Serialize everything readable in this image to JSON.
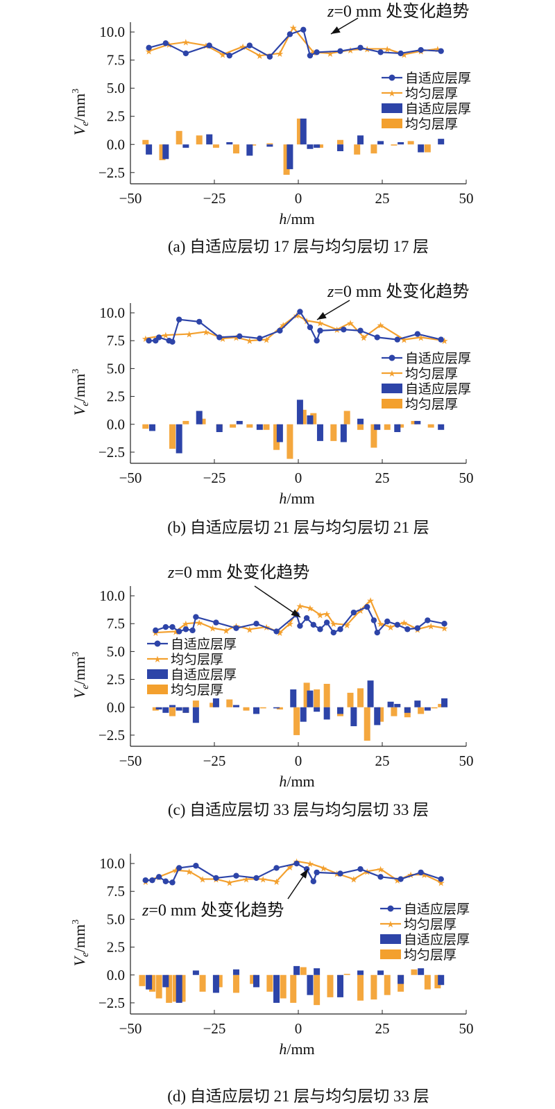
{
  "colors": {
    "adaptive": "#2d44a8",
    "uniform": "#f3a02e",
    "axis": "#222222"
  },
  "legend_labels": [
    "自适应层厚",
    "均匀层厚",
    "自适应层厚",
    "均匀层厚"
  ],
  "chart_data": [
    {
      "type": "line+bar",
      "caption": "(a) 自适应层切 17 层与均匀层切 17 层",
      "annotation": "z=0 mm 处变化趋势",
      "xlabel": "h/mm",
      "ylabel": "Ve/mm3",
      "xlim": [
        -50,
        50
      ],
      "ylim": [
        -3.5,
        10.5
      ],
      "xticks": [
        -50,
        -25,
        0,
        25,
        50
      ],
      "yticks": [
        10.0,
        7.5,
        5.0,
        2.5,
        0.0,
        -2.5
      ],
      "legend_position": "right",
      "series": [
        {
          "name": "自适应层厚",
          "kind": "line",
          "x": [
            -44.5,
            -39.5,
            -33.5,
            -26.5,
            -20.5,
            -14.5,
            -8.5,
            -2.5,
            1.5,
            3.5,
            5.5,
            12.5,
            18.5,
            24.5,
            30.5,
            36.5,
            42.5
          ],
          "y": [
            8.6,
            9.0,
            8.1,
            8.8,
            7.9,
            8.8,
            7.8,
            9.8,
            10.2,
            7.9,
            8.2,
            8.3,
            8.6,
            8.2,
            8.1,
            8.4,
            8.3
          ]
        },
        {
          "name": "均匀层厚",
          "kind": "line",
          "x": [
            -44.5,
            -38.5,
            -33.5,
            -27.5,
            -22.5,
            -16.5,
            -11.5,
            -5.5,
            -1.5,
            4.5,
            9.5,
            15.5,
            20.5,
            26.5,
            31.5,
            36.5,
            41.5
          ],
          "y": [
            8.3,
            8.9,
            9.1,
            8.8,
            8.0,
            8.7,
            7.9,
            8.1,
            10.4,
            8.2,
            8.1,
            8.4,
            8.5,
            8.5,
            8.0,
            8.3,
            8.5
          ]
        },
        {
          "name": "自适应层厚",
          "kind": "bar",
          "x": [
            -44.5,
            -39.5,
            -33.5,
            -26.5,
            -20.5,
            -14.5,
            -8.5,
            -2.5,
            1.5,
            3.5,
            5.5,
            12.5,
            18.5,
            24.5,
            30.5,
            36.5,
            42.5
          ],
          "y": [
            -0.9,
            -1.3,
            -0.3,
            0.9,
            0.2,
            -1.0,
            -0.2,
            -2.2,
            2.3,
            -0.4,
            -0.3,
            -0.6,
            0.8,
            0.3,
            0.2,
            -0.7,
            0.5
          ]
        },
        {
          "name": "均匀层厚",
          "kind": "bar",
          "x": [
            -45.5,
            -40.5,
            -35.5,
            -29.5,
            -24.5,
            -18.5,
            -13.5,
            -8.5,
            -3.5,
            0.5,
            6.5,
            12.5,
            17.5,
            22.5,
            28.5,
            33.5,
            38.5
          ],
          "y": [
            0.4,
            -1.4,
            1.2,
            0.8,
            -0.3,
            -0.8,
            -0.1,
            0.1,
            -2.7,
            2.3,
            -0.3,
            0.4,
            -0.9,
            -0.8,
            -0.1,
            0.3,
            -0.7
          ]
        }
      ]
    },
    {
      "type": "line+bar",
      "caption": "(b) 自适应层切 21 层与均匀层切 21 层",
      "annotation": "z=0 mm 处变化趋势",
      "xlabel": "h/mm",
      "ylabel": "Ve/mm3",
      "xlim": [
        -50,
        50
      ],
      "ylim": [
        -3.5,
        10.5
      ],
      "xticks": [
        -50,
        -25,
        0,
        25,
        50
      ],
      "yticks": [
        10.0,
        7.5,
        5.0,
        2.5,
        0.0,
        -2.5
      ],
      "legend_position": "right",
      "series": [
        {
          "name": "自适应层厚",
          "kind": "line",
          "x": [
            -44.5,
            -42.5,
            -41.5,
            -38.5,
            -37.5,
            -35.5,
            -29.5,
            -23.5,
            -17.5,
            -11.5,
            -5.5,
            0.5,
            3.5,
            5.5,
            6.5,
            13.5,
            18.5,
            23.5,
            29.5,
            35.5,
            42.5
          ],
          "y": [
            7.5,
            7.5,
            7.8,
            7.5,
            7.4,
            9.4,
            9.2,
            7.8,
            7.9,
            7.7,
            8.4,
            10.1,
            8.7,
            7.5,
            8.4,
            8.5,
            8.4,
            7.8,
            7.6,
            8.1,
            7.6
          ]
        },
        {
          "name": "均匀层厚",
          "kind": "line",
          "x": [
            -45.5,
            -39.5,
            -32.5,
            -27.5,
            -22.5,
            -18.5,
            -14.5,
            -9.5,
            -4.5,
            -0.5,
            2.5,
            6.5,
            11.5,
            15.5,
            19.5,
            24.5,
            31.5,
            36.5,
            43.5
          ],
          "y": [
            7.7,
            8.0,
            8.1,
            8.3,
            7.7,
            7.8,
            7.5,
            7.6,
            8.9,
            9.8,
            9.3,
            9.1,
            8.5,
            9.1,
            7.8,
            8.9,
            7.6,
            7.8,
            7.5
          ]
        },
        {
          "name": "自适应层厚",
          "kind": "bar",
          "x": [
            -43.5,
            -35.5,
            -29.5,
            -23.5,
            -17.5,
            -11.5,
            -5.5,
            0.5,
            3.5,
            6.5,
            13.5,
            18.5,
            23.5,
            29.5,
            35.5,
            42.5
          ],
          "y": [
            -0.6,
            -2.6,
            1.2,
            -0.7,
            0.3,
            -0.5,
            -1.6,
            2.2,
            0.8,
            -1.5,
            -1.6,
            0.5,
            -0.5,
            -0.7,
            0.3,
            -0.5
          ]
        },
        {
          "name": "均匀层厚",
          "kind": "bar",
          "x": [
            -45.5,
            -37.5,
            -33.5,
            -28.5,
            -23.5,
            -19.5,
            -14.5,
            -9.5,
            -6.5,
            -2.5,
            1.5,
            4.5,
            10.5,
            14.5,
            18.5,
            22.5,
            26.5,
            30.5,
            34.5,
            39.5
          ],
          "y": [
            -0.4,
            -2.2,
            0.3,
            0.5,
            -0.5,
            -0.3,
            -0.3,
            -0.5,
            -2.3,
            -3.1,
            1.3,
            1.0,
            -1.5,
            1.2,
            -0.5,
            -2.1,
            -0.5,
            -0.3,
            0.3,
            -0.3
          ]
        }
      ]
    },
    {
      "type": "line+bar",
      "caption": "(c) 自适应层切 33 层与均匀层切 33 层",
      "annotation": "z=0 mm 处变化趋势",
      "xlabel": "h/mm",
      "ylabel": "Ve/mm3",
      "xlim": [
        -50,
        50
      ],
      "ylim": [
        -3.5,
        10.5
      ],
      "xticks": [
        -50,
        -25,
        0,
        25,
        50
      ],
      "yticks": [
        10.0,
        7.5,
        5.0,
        2.5,
        0.0,
        -2.5
      ],
      "legend_position": "left",
      "series": [
        {
          "name": "自适应层厚",
          "kind": "line",
          "x": [
            -42.5,
            -39.5,
            -37.5,
            -35.5,
            -33.5,
            -31.5,
            -30.5,
            -24.5,
            -18.5,
            -12.5,
            -6.5,
            -0.5,
            0.5,
            2.5,
            4.5,
            6.5,
            8.5,
            10.5,
            12.5,
            16.5,
            20.5,
            22.5,
            23.5,
            26.5,
            29.5,
            32.5,
            35.5,
            38.5,
            43.5
          ],
          "y": [
            6.9,
            7.2,
            7.2,
            6.8,
            7.0,
            6.9,
            8.1,
            7.6,
            7.1,
            7.5,
            6.8,
            8.3,
            7.3,
            8.0,
            7.4,
            7.0,
            7.6,
            6.7,
            7.0,
            8.5,
            9.0,
            7.8,
            6.7,
            7.7,
            7.4,
            7.0,
            7.1,
            7.8,
            7.5
          ]
        },
        {
          "name": "均匀层厚",
          "kind": "line",
          "x": [
            -42.5,
            -36.5,
            -33.5,
            -29.5,
            -25.5,
            -21.5,
            -18.5,
            -14.5,
            -9.5,
            -5.5,
            -2.5,
            0.5,
            3.5,
            6.5,
            8.5,
            10.5,
            14.5,
            18.5,
            21.5,
            24.5,
            27.5,
            31.5,
            35.5,
            39.5,
            43.5
          ],
          "y": [
            6.7,
            6.8,
            7.5,
            7.6,
            7.1,
            6.9,
            7.3,
            7.0,
            7.2,
            6.7,
            7.5,
            9.1,
            8.9,
            8.3,
            8.4,
            7.5,
            7.4,
            8.7,
            9.6,
            7.5,
            7.2,
            7.6,
            7.0,
            7.3,
            7.1
          ]
        },
        {
          "name": "自适应层厚",
          "kind": "bar",
          "x": [
            -41.5,
            -39.5,
            -37.5,
            -35.5,
            -33.5,
            -30.5,
            -24.5,
            -18.5,
            -12.5,
            -6.5,
            -1.5,
            1.5,
            3.5,
            5.5,
            8.5,
            12.5,
            16.5,
            21.5,
            23.5,
            27.5,
            29.5,
            32.5,
            35.5,
            38.5,
            43.5
          ],
          "y": [
            -0.2,
            -0.5,
            0.2,
            -0.3,
            -0.5,
            -1.4,
            0.8,
            0.2,
            -0.6,
            -0.1,
            1.6,
            -1.3,
            1.5,
            -0.4,
            -1.1,
            -0.6,
            -1.7,
            2.4,
            -1.6,
            0.5,
            0.3,
            -0.5,
            0.6,
            -0.3,
            0.8
          ]
        },
        {
          "name": "均匀层厚",
          "kind": "bar",
          "x": [
            -42.5,
            -37.5,
            -33.5,
            -30.5,
            -25.5,
            -20.5,
            -15.5,
            -10.5,
            -5.5,
            -0.5,
            2.5,
            5.5,
            8.5,
            12.5,
            15.5,
            18.5,
            20.5,
            24.5,
            28.5,
            32.5,
            36.5,
            40.5,
            42.5
          ],
          "y": [
            -0.3,
            -0.8,
            -0.5,
            0.6,
            0.4,
            0.7,
            -0.3,
            -0.1,
            -0.2,
            -2.5,
            2.2,
            1.6,
            2.1,
            -0.8,
            1.3,
            1.7,
            -3.0,
            -1.3,
            -0.8,
            -0.9,
            -0.6,
            -0.1,
            0.3
          ]
        }
      ]
    },
    {
      "type": "line+bar",
      "caption": "(d) 自适应层切 21 层与均匀层切 33 层",
      "annotation": "z=0 mm 处变化趋势",
      "xlabel": "h/mm",
      "ylabel": "Ve/mm3",
      "xlim": [
        -50,
        50
      ],
      "ylim": [
        -3.5,
        10.5
      ],
      "xticks": [
        -50,
        -25,
        0,
        25,
        50
      ],
      "yticks": [
        10.0,
        7.5,
        5.0,
        2.5,
        0.0,
        -2.5
      ],
      "legend_position": "right",
      "series": [
        {
          "name": "自适应层厚",
          "kind": "line",
          "x": [
            -45.5,
            -43.5,
            -41.5,
            -39.5,
            -37.5,
            -35.5,
            -30.5,
            -24.5,
            -18.5,
            -12.5,
            -6.5,
            -0.5,
            2.5,
            4.5,
            5.5,
            12.5,
            18.5,
            24.5,
            30.5,
            36.5,
            42.5
          ],
          "y": [
            8.5,
            8.5,
            8.8,
            8.4,
            8.3,
            9.6,
            9.8,
            8.7,
            8.9,
            8.7,
            9.6,
            10.0,
            9.5,
            8.4,
            9.2,
            9.1,
            9.5,
            8.8,
            8.6,
            9.2,
            8.6
          ]
        },
        {
          "name": "均匀层厚",
          "kind": "line",
          "x": [
            -45.5,
            -41.5,
            -36.5,
            -32.5,
            -28.5,
            -24.5,
            -20.5,
            -15.5,
            -10.5,
            -6.5,
            -2.5,
            -0.5,
            3.5,
            7.5,
            11.5,
            16.5,
            20.5,
            24.5,
            29.5,
            33.5,
            37.5,
            42.5
          ],
          "y": [
            8.4,
            8.8,
            9.4,
            9.3,
            8.6,
            8.6,
            8.3,
            8.6,
            8.6,
            8.4,
            9.7,
            10.2,
            10.0,
            9.6,
            9.1,
            8.6,
            9.3,
            9.5,
            8.5,
            9.0,
            9.0,
            8.3
          ]
        },
        {
          "name": "自适应层厚",
          "kind": "bar",
          "x": [
            -44.5,
            -39.5,
            -35.5,
            -30.5,
            -24.5,
            -18.5,
            -12.5,
            -6.5,
            -0.5,
            3.5,
            5.5,
            12.5,
            18.5,
            24.5,
            30.5,
            36.5,
            42.5
          ],
          "y": [
            -1.3,
            -1.1,
            -2.5,
            0.4,
            -1.6,
            0.5,
            -1.1,
            -2.5,
            0.8,
            -1.8,
            0.6,
            -2.0,
            0.4,
            0.4,
            -0.8,
            0.6,
            -0.9
          ]
        },
        {
          "name": "均匀层厚",
          "kind": "bar",
          "x": [
            -46.5,
            -43.5,
            -41.5,
            -38.5,
            -36.5,
            -34.5,
            -28.5,
            -23.5,
            -18.5,
            -13.5,
            -8.5,
            -4.5,
            -1.5,
            1.5,
            5.5,
            9.5,
            14.5,
            18.5,
            22.5,
            26.5,
            30.5,
            34.5,
            38.5,
            41.5
          ],
          "y": [
            -1.0,
            -1.5,
            -2.1,
            -2.5,
            -2.4,
            -2.4,
            -1.5,
            -1.1,
            -1.6,
            -0.8,
            -1.5,
            -2.1,
            -2.5,
            0.7,
            -2.7,
            -2.0,
            0.1,
            -2.3,
            -2.2,
            -1.8,
            -1.5,
            0.5,
            -1.3,
            -1.2
          ]
        }
      ]
    }
  ]
}
